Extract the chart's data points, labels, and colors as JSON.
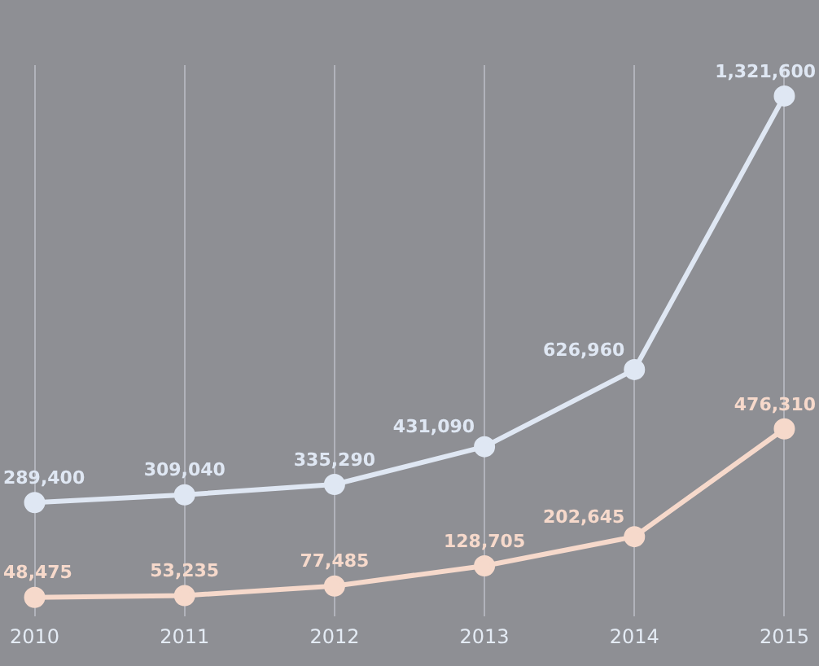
{
  "chart_data": {
    "type": "line",
    "categories": [
      "2010",
      "2011",
      "2012",
      "2013",
      "2014",
      "2015"
    ],
    "series": [
      {
        "color": "#dfe7f3",
        "values": [
          289400,
          309040,
          335290,
          431090,
          626960,
          1321600
        ],
        "value_labels": [
          "289,400",
          "309,040",
          "335,290",
          "431,090",
          "626,960",
          "1,321,600"
        ]
      },
      {
        "color": "#f6d9cb",
        "values": [
          48475,
          53235,
          77485,
          128705,
          202645,
          476310
        ],
        "value_labels": [
          "48,475",
          "53,235",
          "77,485",
          "128,705",
          "202,645",
          "476,310"
        ]
      }
    ],
    "grid": "x",
    "marker": "circle",
    "legend": false
  }
}
